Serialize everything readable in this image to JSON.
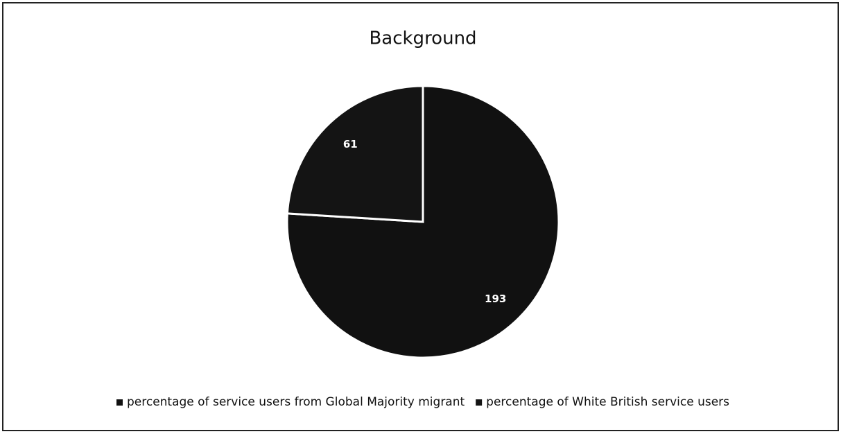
{
  "chart_data": {
    "type": "pie",
    "title": "Background",
    "categories": [
      "percentage of service users from Global Majority migrant",
      "percentage of White British service users"
    ],
    "values": [
      193,
      61
    ],
    "colors": [
      "#111111",
      "#141414"
    ],
    "legend": "bottom"
  }
}
